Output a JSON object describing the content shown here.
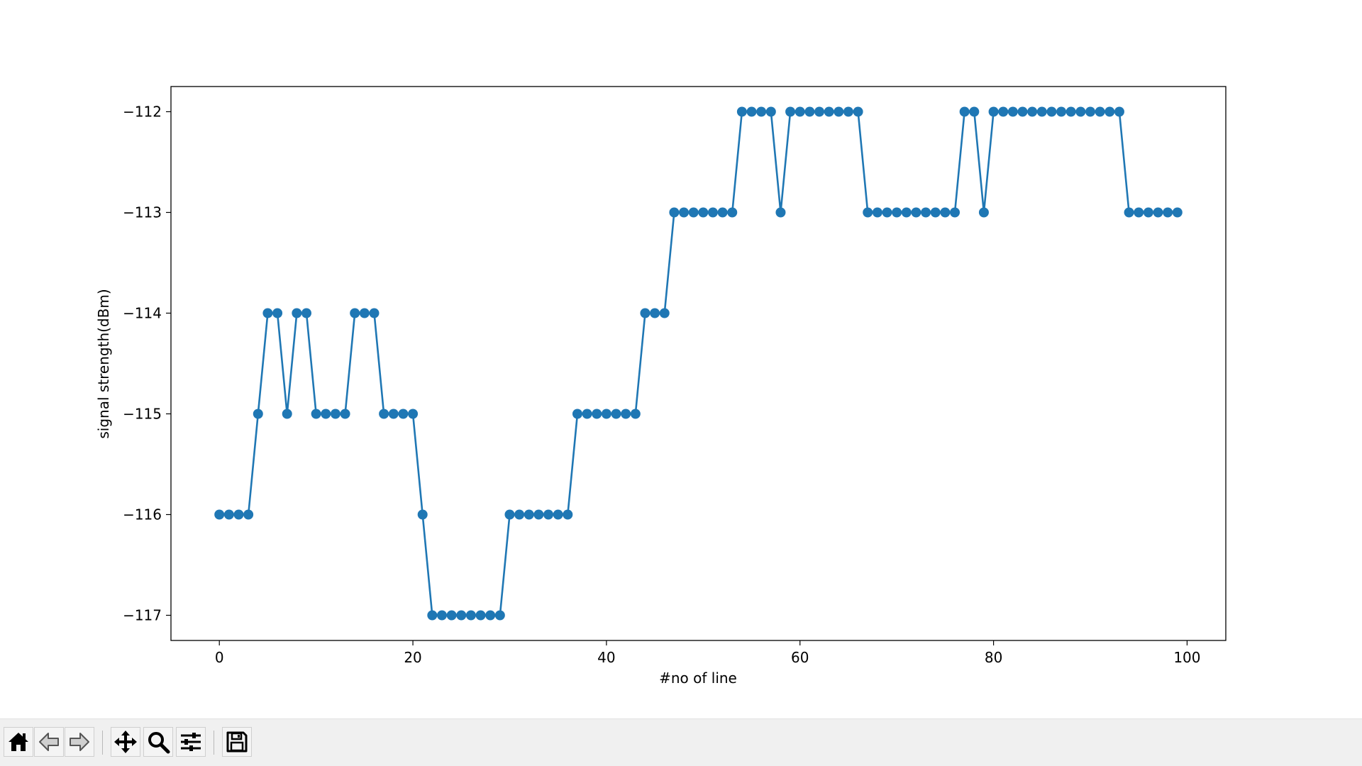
{
  "chart_data": {
    "type": "line",
    "title": "",
    "xlabel": "#no of line",
    "ylabel": "signal strength(dBm)",
    "xlim": [
      -5,
      104
    ],
    "ylim": [
      -117.25,
      -111.75
    ],
    "xticks": [
      0,
      20,
      40,
      60,
      80,
      100
    ],
    "yticks": [
      -117,
      -116,
      -115,
      -114,
      -113,
      -112
    ],
    "ytick_labels": [
      "−117",
      "−116",
      "−115",
      "−114",
      "−113",
      "−112"
    ],
    "grid": false,
    "marker": "circle",
    "color": "#1f77b4",
    "series": [
      {
        "x": [
          0,
          1,
          2,
          3,
          4,
          5,
          6,
          7,
          8,
          9,
          10,
          11,
          12,
          13,
          14,
          15,
          16,
          17,
          18,
          19,
          20,
          21,
          22,
          23,
          24,
          25,
          26,
          27,
          28,
          29,
          30,
          31,
          32,
          33,
          34,
          35,
          36,
          37,
          38,
          39,
          40,
          41,
          42,
          43,
          44,
          45,
          46,
          47,
          48,
          49,
          50,
          51,
          52,
          53,
          54,
          55,
          56,
          57,
          58,
          59,
          60,
          61,
          62,
          63,
          64,
          65,
          66,
          67,
          68,
          69,
          70,
          71,
          72,
          73,
          74,
          75,
          76,
          77,
          78,
          79,
          80,
          81,
          82,
          83,
          84,
          85,
          86,
          87,
          88,
          89,
          90,
          91,
          92,
          93,
          94,
          95,
          96,
          97,
          98,
          99
        ],
        "values": [
          -116,
          -116,
          -116,
          -116,
          -115,
          -114,
          -114,
          -115,
          -114,
          -114,
          -115,
          -115,
          -115,
          -115,
          -114,
          -114,
          -114,
          -115,
          -115,
          -115,
          -115,
          -116,
          -117,
          -117,
          -117,
          -117,
          -117,
          -117,
          -117,
          -117,
          -116,
          -116,
          -116,
          -116,
          -116,
          -116,
          -116,
          -115,
          -115,
          -115,
          -115,
          -115,
          -115,
          -115,
          -114,
          -114,
          -114,
          -113,
          -113,
          -113,
          -113,
          -113,
          -113,
          -113,
          -112,
          -112,
          -112,
          -112,
          -113,
          -112,
          -112,
          -112,
          -112,
          -112,
          -112,
          -112,
          -112,
          -113,
          -113,
          -113,
          -113,
          -113,
          -113,
          -113,
          -113,
          -113,
          -113,
          -112,
          -112,
          -113,
          -112,
          -112,
          -112,
          -112,
          -112,
          -112,
          -112,
          -112,
          -112,
          -112,
          -112,
          -112,
          -112,
          -112,
          -113,
          -113,
          -113,
          -113,
          -113,
          -113
        ]
      }
    ]
  },
  "toolbar": {
    "buttons": [
      {
        "name": "home-button",
        "icon": "home-icon"
      },
      {
        "name": "back-button",
        "icon": "arrow-left-icon"
      },
      {
        "name": "forward-button",
        "icon": "arrow-right-icon"
      },
      {
        "name": "pan-button",
        "icon": "move-icon"
      },
      {
        "name": "zoom-button",
        "icon": "magnifier-icon"
      },
      {
        "name": "configure-subplots-button",
        "icon": "sliders-icon"
      },
      {
        "name": "save-button",
        "icon": "floppy-disk-icon"
      }
    ]
  }
}
